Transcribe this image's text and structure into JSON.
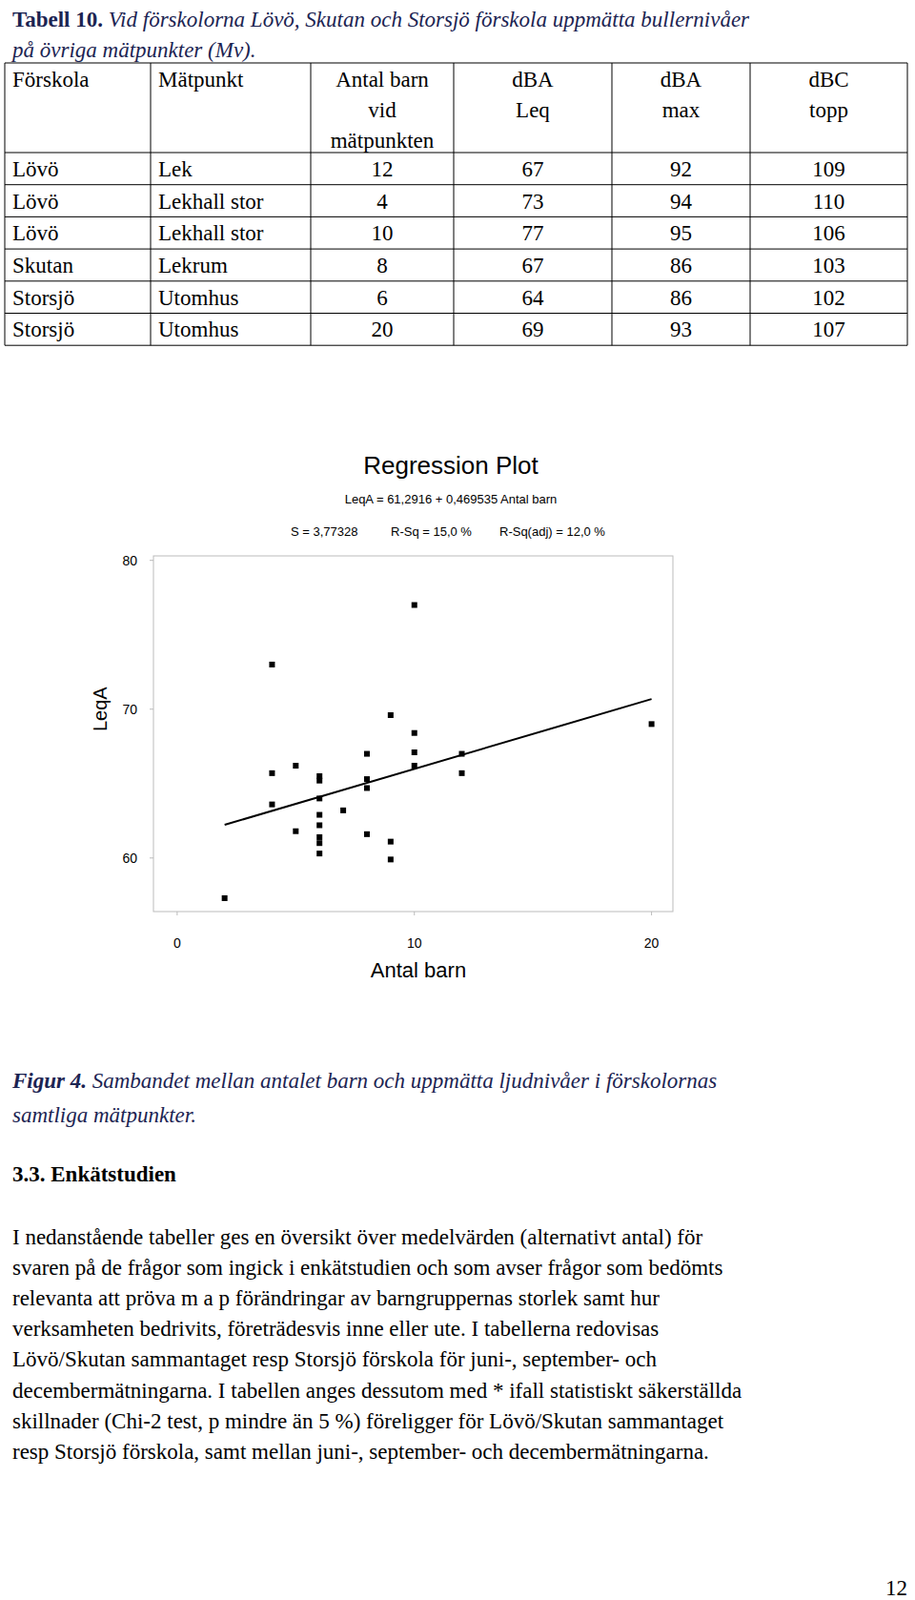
{
  "table_caption": {
    "label": "Tabell 10.",
    "lines": [
      "Vid förskolorna Lövö, Skutan och Storsjö förskola uppmätta bullernivåer",
      "på övriga mätpunkter (Mv)."
    ]
  },
  "table": {
    "header": [
      [
        "Förskola"
      ],
      [
        "Mätpunkt"
      ],
      [
        "Antal barn",
        "vid",
        "mätpunkten"
      ],
      [
        "dBA",
        "Leq"
      ],
      [
        "dBA",
        "max"
      ],
      [
        "dBC",
        "topp"
      ]
    ],
    "rows": [
      [
        "Lövö",
        "Lek",
        12,
        67,
        92,
        109
      ],
      [
        "Lövö",
        "Lekhall stor",
        4,
        73,
        94,
        110
      ],
      [
        "Lövö",
        "Lekhall stor",
        10,
        77,
        95,
        106
      ],
      [
        "Skutan",
        "Lekrum",
        8,
        67,
        86,
        103
      ],
      [
        "Storsjö",
        "Utomhus",
        6,
        64,
        86,
        102
      ],
      [
        "Storsjö",
        "Utomhus",
        20,
        69,
        93,
        107
      ]
    ]
  },
  "chart_data": {
    "type": "scatter",
    "title": "Regression Plot",
    "regression": {
      "equation": "LeqA = 61,2916 + 0,469535 Antal barn",
      "intercept": 61.2916,
      "slope": 0.469535
    },
    "annotations": [
      "S = 3,77328",
      "R-Sq = 15,0 %",
      "R-Sq(adj) = 12,0 %"
    ],
    "x_label": "Antal barn",
    "y_label": "LeqA",
    "x": [
      2,
      4,
      4,
      4,
      5,
      5,
      6,
      6,
      6,
      6,
      6,
      6,
      6,
      6,
      7,
      8,
      8,
      8,
      8,
      9,
      9,
      9,
      10,
      10,
      10,
      10,
      12,
      12,
      20
    ],
    "values": [
      57.3,
      73,
      65.7,
      63.6,
      66.2,
      61.8,
      65.5,
      65.2,
      64,
      62.9,
      62.2,
      61.4,
      61.0,
      60.3,
      63.2,
      67,
      65.3,
      64.7,
      61.6,
      69.6,
      61.1,
      59.9,
      77,
      68.4,
      67.1,
      66.2,
      67,
      65.7,
      69
    ],
    "color": "#000000",
    "marker": "square",
    "xlim": [
      -1,
      20.9
    ],
    "ylim": [
      56.4,
      80.3
    ],
    "xticks": [
      0,
      10,
      20
    ],
    "yticks": [
      60,
      70,
      80
    ],
    "grid": false
  },
  "figure_caption": {
    "label": "Figur 4.",
    "lines": [
      "Sambandet mellan antalet barn och uppmätta ljudnivåer i förskolornas",
      "samtliga mätpunkter."
    ]
  },
  "section": {
    "heading": "3.3. Enkätstudien",
    "lines": [
      "I nedanstående tabeller ges en översikt över medelvärden (alternativt antal) för",
      "svaren på de frågor som ingick i enkätstudien och som avser frågor som bedömts",
      "relevanta att pröva m a p förändringar av barngruppernas storlek samt hur",
      "verksamheten bedrivits, företrädesvis inne eller ute. I tabellerna redovisas",
      "Lövö/Skutan sammantaget resp Storsjö förskola för juni-, september- och",
      "decembermätningarna. I tabellen anges dessutom med * ifall statistiskt säkerställda",
      "skillnader (Chi-2 test, p mindre än 5 %) föreligger för Lövö/Skutan sammantaget",
      "resp Storsjö förskola, samt mellan juni-, september- och decembermätningarna."
    ]
  },
  "page_number": "12"
}
